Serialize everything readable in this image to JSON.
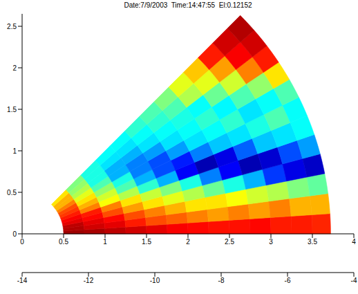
{
  "chart_data": {
    "type": "heatmap",
    "title": "Date:7/9/2003  Time:14:47:55  El:0.12152",
    "xlim": [
      0,
      4
    ],
    "xticks": [
      0,
      0.5,
      1,
      1.5,
      2,
      2.5,
      3,
      3.5,
      4
    ],
    "ylim": [
      0,
      2.65
    ],
    "yticks": [
      0,
      0.5,
      1,
      1.5,
      2,
      2.5
    ],
    "r_bins": [
      0.5,
      0.75,
      1,
      1.25,
      1.5,
      1.75,
      2,
      2.25,
      2.5,
      2.75,
      3,
      3.25,
      3.5,
      3.72
    ],
    "azimuth_bins": [
      0,
      3.75,
      7.5,
      11.25,
      15,
      18.75,
      22.5,
      26.25,
      30,
      33.75,
      37.5,
      41.25,
      45
    ],
    "values": [
      [
        -4.3,
        -4.4,
        -4.6,
        -4.8,
        -5,
        -5.2,
        -5.3,
        -5.4,
        -5.4,
        -5.3,
        -5.5,
        -5.5,
        -5.6
      ],
      [
        -4.5,
        -4.8,
        -5,
        -5.5,
        -6,
        -6.2,
        -6.5,
        -6.8,
        -6.5,
        -6.8,
        -6.5,
        -7,
        -7
      ],
      [
        -4.6,
        -5,
        -5.3,
        -6,
        -6.5,
        -7,
        -7.5,
        -7.5,
        -7.8,
        -8.2,
        -8.5,
        -9,
        -9.3
      ],
      [
        -5,
        -5.3,
        -6,
        -6.8,
        -7.5,
        -8,
        -8.5,
        -9.2,
        -10,
        -11,
        -12.2,
        -13,
        -13.3
      ],
      [
        -5.2,
        -5.5,
        -6.5,
        -7.5,
        -8.3,
        -9,
        -10,
        -11.5,
        -12.8,
        -13.5,
        -13.2,
        -12,
        -11.2
      ],
      [
        -5.5,
        -6.5,
        -7.8,
        -8.5,
        -9.8,
        -11,
        -12.8,
        -13.5,
        -13,
        -11.8,
        -10.8,
        -10.5,
        -10.2
      ],
      [
        -5.8,
        -7,
        -8.2,
        -9.5,
        -11,
        -12,
        -12.5,
        -11.5,
        -10.8,
        -10.5,
        -10,
        -9.5,
        -10.2
      ],
      [
        -6,
        -7.5,
        -8.8,
        -10,
        -11.5,
        -12,
        -11.2,
        -10.5,
        -10.2,
        -9.8,
        -10.5,
        -10.2,
        -9.5
      ],
      [
        -6.5,
        -8,
        -9.5,
        -11,
        -11.5,
        -11.2,
        -10.5,
        -10.2,
        -9.8,
        -10.3,
        -9.5,
        -8.8,
        -7.5
      ],
      [
        -7,
        -8.5,
        -10,
        -11,
        -11,
        -10.5,
        -10.2,
        -10,
        -10.2,
        -9.2,
        -8.2,
        -6.5,
        -5.5
      ],
      [
        -7,
        -8.8,
        -10,
        -10.5,
        -10.5,
        -10.2,
        -9.8,
        -9.5,
        -8.5,
        -8,
        -6.8,
        -5.2,
        -4.8
      ],
      [
        -7.5,
        -9,
        -10,
        -10.2,
        -10.2,
        -9.8,
        -9.5,
        -9,
        -8,
        -7.2,
        -5.5,
        -4.8,
        -4.5
      ]
    ],
    "colorbar_lim": [
      -14,
      -4
    ],
    "colorbar_ticks": [
      -14,
      -12,
      -10,
      -8,
      -6,
      -4
    ]
  }
}
